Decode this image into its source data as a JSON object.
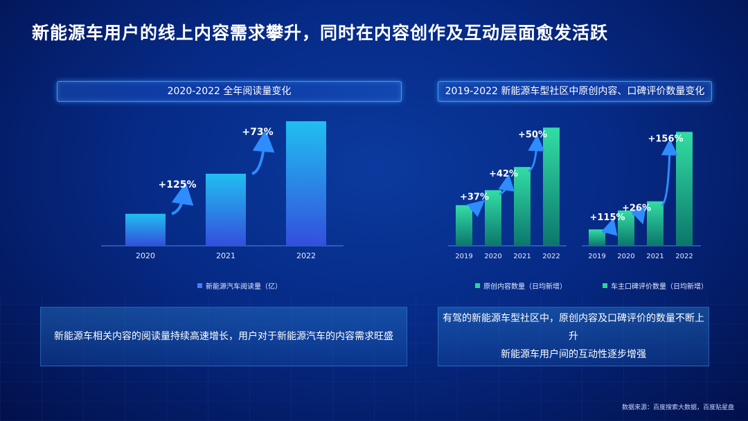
{
  "title": "新能源车用户的线上内容需求攀升，同时在内容创作及互动层面愈发活跃",
  "panel_left": {
    "header": "2020-2022 全年阅读量变化",
    "legend": "新能源汽车阅读量（亿）",
    "summary": "新能源车相关内容的阅读量持续高速增长，用户对于新能源汽车的内容需求旺盛"
  },
  "panel_right": {
    "header": "2019-2022 新能源车型社区中原创内容、口碑评价数量变化",
    "legend_1": "原创内容数量（日均新增）",
    "legend_2": "车主口碑评价数量（日均新增）",
    "summary_line1": "有驾的新能源车型社区中，原创内容及口碑评价的数量不断上升",
    "summary_line2": "新能源车用户间的互动性逐步增强"
  },
  "source": "数据来源：百度搜索大数据，百度贴星盘",
  "colors": {
    "blue_top": "#22c6f5",
    "blue_bottom": "#3650e0",
    "green_top": "#35e7a6",
    "green_bottom": "#0c7a6a",
    "arrow": "#2f8cff"
  },
  "chart_data": [
    {
      "type": "bar",
      "categories": [
        "2020",
        "2021",
        "2022"
      ],
      "series": [
        {
          "name": "新能源汽车阅读量（亿）",
          "values": [
            100,
            225,
            389
          ]
        }
      ],
      "annotations": [
        "+125%",
        "+73%"
      ],
      "ylim": [
        0,
        400
      ]
    },
    {
      "type": "bar",
      "categories": [
        "2019",
        "2020",
        "2021",
        "2022"
      ],
      "series": [
        {
          "name": "原创内容数量（日均新增）",
          "values": [
            100,
            137,
            194,
            291
          ]
        }
      ],
      "annotations": [
        "+37%",
        "+42%",
        "+50%"
      ],
      "ylim": [
        0,
        300
      ]
    },
    {
      "type": "bar",
      "categories": [
        "2019",
        "2020",
        "2021",
        "2022"
      ],
      "series": [
        {
          "name": "车主口碑评价数量（日均新增）",
          "values": [
            100,
            215,
            271,
            694
          ]
        }
      ],
      "annotations": [
        "+115%",
        "+26%",
        "+156%"
      ],
      "ylim": [
        0,
        700
      ]
    }
  ]
}
